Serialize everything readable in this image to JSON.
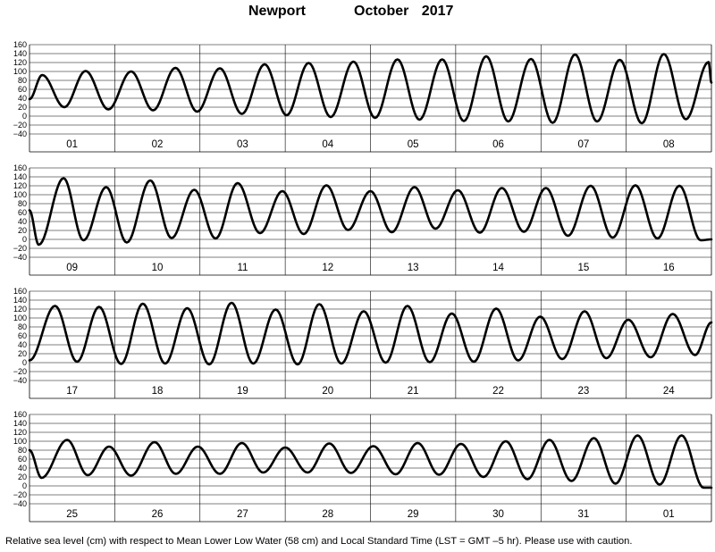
{
  "title": {
    "station": "Newport",
    "period": "October   2017"
  },
  "footer": "Relative sea level (cm) with respect to Mean Lower Low Water (58 cm) and Local Standard Time (LST = GMT –5 hr). Please use with caution.",
  "colors": {
    "line": "#000000",
    "grid": "#000000",
    "background": "#ffffff"
  },
  "chart_data": [
    {
      "type": "line",
      "xlabel": "",
      "ylabel": "",
      "ylim": [
        -40,
        160
      ],
      "yticks": [
        "160",
        "140",
        "120",
        "100",
        "80",
        "60",
        "40",
        "20",
        "0",
        "−20",
        "−40"
      ],
      "grid": "horizontal lines every 20 cm, vertical day separators",
      "categories": [
        "01",
        "02",
        "03",
        "04",
        "05",
        "06",
        "07",
        "08"
      ],
      "x_unit": "hours since 2017-10-01 00:00 LST",
      "series": [
        {
          "values": [
            [
              0,
              38
            ],
            [
              3.6,
              92
            ],
            [
              9.8,
              20
            ],
            [
              15.8,
              101
            ],
            [
              22.2,
              15
            ],
            [
              28.6,
              100
            ],
            [
              34.8,
              13
            ],
            [
              41.1,
              108
            ],
            [
              47.2,
              10
            ],
            [
              53.6,
              107
            ],
            [
              59.8,
              5
            ],
            [
              66.2,
              116
            ],
            [
              72.4,
              2
            ],
            [
              78.6,
              119
            ],
            [
              84.8,
              -2
            ],
            [
              91.2,
              122
            ],
            [
              97.3,
              -4
            ],
            [
              103.6,
              127
            ],
            [
              109.8,
              -8
            ],
            [
              116.2,
              127
            ],
            [
              122.3,
              -11
            ],
            [
              128.6,
              134
            ],
            [
              134.8,
              -12
            ],
            [
              141.2,
              128
            ],
            [
              147.3,
              -15
            ],
            [
              153.6,
              138
            ],
            [
              159.8,
              -12
            ],
            [
              166.2,
              126
            ],
            [
              172.4,
              -16
            ],
            [
              178.6,
              139
            ],
            [
              184.8,
              -7
            ],
            [
              191.2,
              121
            ],
            [
              192,
              75
            ]
          ]
        }
      ]
    },
    {
      "type": "line",
      "xlabel": "",
      "ylabel": "",
      "ylim": [
        -40,
        160
      ],
      "yticks": [
        "160",
        "140",
        "120",
        "100",
        "80",
        "60",
        "40",
        "20",
        "0",
        "−20",
        "−40"
      ],
      "grid": "horizontal lines every 20 cm, vertical day separators",
      "categories": [
        "09",
        "10",
        "11",
        "12",
        "13",
        "14",
        "15",
        "16"
      ],
      "x_unit": "hours since 2017-10-09 00:00 LST",
      "series": [
        {
          "values": [
            [
              0,
              65
            ],
            [
              2.6,
              -12
            ],
            [
              9.6,
              137
            ],
            [
              15.2,
              -2
            ],
            [
              21.6,
              117
            ],
            [
              27.4,
              -7
            ],
            [
              34,
              132
            ],
            [
              40,
              3
            ],
            [
              46.4,
              111
            ],
            [
              52.4,
              2
            ],
            [
              58.6,
              126
            ],
            [
              64.9,
              14
            ],
            [
              71.2,
              108
            ],
            [
              77.2,
              12
            ],
            [
              83.6,
              121
            ],
            [
              89.7,
              21
            ],
            [
              96,
              108
            ],
            [
              102,
              16
            ],
            [
              108.4,
              117
            ],
            [
              114.3,
              24
            ],
            [
              120.6,
              110
            ],
            [
              126.8,
              15
            ],
            [
              133,
              115
            ],
            [
              139.2,
              17
            ],
            [
              145.4,
              115
            ],
            [
              151.6,
              8
            ],
            [
              158,
              120
            ],
            [
              164.2,
              4
            ],
            [
              170.6,
              121
            ],
            [
              176.8,
              2
            ],
            [
              183,
              120
            ],
            [
              189,
              -2
            ],
            [
              192,
              0
            ]
          ]
        }
      ]
    },
    {
      "type": "line",
      "xlabel": "",
      "ylabel": "",
      "ylim": [
        -40,
        160
      ],
      "yticks": [
        "160",
        "140",
        "120",
        "100",
        "80",
        "60",
        "40",
        "20",
        "0",
        "−20",
        "−40"
      ],
      "grid": "horizontal lines every 20 cm, vertical day separators",
      "categories": [
        "17",
        "18",
        "19",
        "20",
        "21",
        "22",
        "23",
        "24"
      ],
      "x_unit": "hours since 2017-10-17 00:00 LST",
      "series": [
        {
          "values": [
            [
              0,
              5
            ],
            [
              7.2,
              127
            ],
            [
              13.4,
              2
            ],
            [
              19.6,
              125
            ],
            [
              25.8,
              -3
            ],
            [
              31.9,
              132
            ],
            [
              38.2,
              -2
            ],
            [
              44.4,
              122
            ],
            [
              50.6,
              -4
            ],
            [
              56.9,
              134
            ],
            [
              63,
              -2
            ],
            [
              69.3,
              119
            ],
            [
              75.5,
              -4
            ],
            [
              81.6,
              131
            ],
            [
              87.8,
              -2
            ],
            [
              94.1,
              115
            ],
            [
              100.3,
              0
            ],
            [
              106.4,
              127
            ],
            [
              112.7,
              1
            ],
            [
              118.9,
              110
            ],
            [
              125.1,
              2
            ],
            [
              131.4,
              121
            ],
            [
              137.6,
              5
            ],
            [
              143.8,
              103
            ],
            [
              150,
              8
            ],
            [
              156.3,
              115
            ],
            [
              162.4,
              10
            ],
            [
              168.6,
              96
            ],
            [
              174.9,
              12
            ],
            [
              181.1,
              109
            ],
            [
              187.4,
              17
            ],
            [
              192,
              90
            ]
          ]
        }
      ]
    },
    {
      "type": "line",
      "xlabel": "",
      "ylabel": "",
      "ylim": [
        -40,
        160
      ],
      "yticks": [
        "160",
        "140",
        "120",
        "100",
        "80",
        "60",
        "40",
        "20",
        "0",
        "−20",
        "−40"
      ],
      "grid": "horizontal lines every 20 cm, vertical day separators",
      "categories": [
        "25",
        "26",
        "27",
        "28",
        "29",
        "30",
        "31",
        "01"
      ],
      "x_unit": "hours since 2017-10-25 00:00 LST",
      "series": [
        {
          "values": [
            [
              0,
              80
            ],
            [
              3.4,
              18
            ],
            [
              10.6,
              103
            ],
            [
              16.4,
              24
            ],
            [
              22.4,
              88
            ],
            [
              28.6,
              23
            ],
            [
              35.2,
              98
            ],
            [
              41.2,
              27
            ],
            [
              47.4,
              88
            ],
            [
              53.6,
              27
            ],
            [
              59.8,
              96
            ],
            [
              65.8,
              30
            ],
            [
              72,
              86
            ],
            [
              78.3,
              30
            ],
            [
              84.4,
              95
            ],
            [
              90.5,
              29
            ],
            [
              96.8,
              89
            ],
            [
              103.1,
              26
            ],
            [
              109.3,
              96
            ],
            [
              115.3,
              25
            ],
            [
              121.5,
              94
            ],
            [
              127.8,
              20
            ],
            [
              134.1,
              100
            ],
            [
              140.2,
              15
            ],
            [
              146.4,
              103
            ],
            [
              152.6,
              11
            ],
            [
              158.9,
              107
            ],
            [
              165,
              5
            ],
            [
              171.2,
              113
            ],
            [
              177.4,
              3
            ],
            [
              183.6,
              113
            ],
            [
              189.8,
              -4
            ],
            [
              192,
              -4
            ]
          ]
        }
      ]
    }
  ]
}
